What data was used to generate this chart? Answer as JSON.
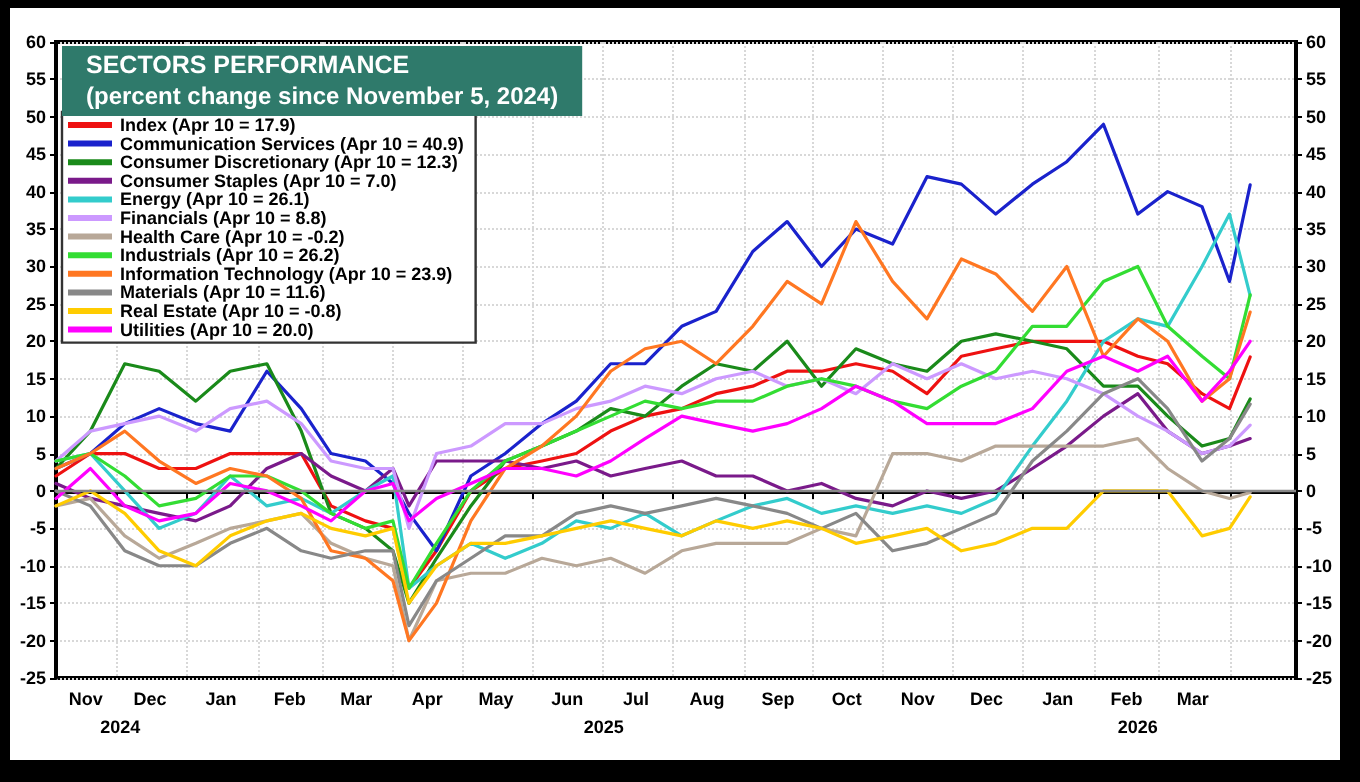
{
  "chart_data": {
    "type": "line",
    "title": "SECTORS PERFORMANCE",
    "subtitle": "(percent change since November 5, 2024)",
    "x": [
      "2024-11-05",
      "2024-11-20",
      "2024-12-05",
      "2024-12-20",
      "2025-01-05",
      "2025-01-20",
      "2025-02-05",
      "2025-02-20",
      "2025-03-05",
      "2025-03-20",
      "2025-04-01",
      "2025-04-08",
      "2025-04-20",
      "2025-05-05",
      "2025-05-20",
      "2025-06-05",
      "2025-06-20",
      "2025-07-05",
      "2025-07-20",
      "2025-08-05",
      "2025-08-20",
      "2025-09-05",
      "2025-09-20",
      "2025-10-05",
      "2025-10-20",
      "2025-11-05",
      "2025-11-20",
      "2025-12-05",
      "2025-12-20",
      "2026-01-05",
      "2026-01-20",
      "2026-02-05",
      "2026-02-20",
      "2026-03-05",
      "2026-03-20",
      "2026-04-01",
      "2026-04-10"
    ],
    "series": [
      {
        "name": "Index (Apr 10 = 17.9)",
        "color": "#ee1111",
        "values": [
          2,
          5,
          5,
          3,
          3,
          5,
          5,
          5,
          -2,
          -4,
          -5,
          -13,
          -8,
          0,
          3,
          4,
          5,
          8,
          10,
          11,
          13,
          14,
          16,
          16,
          17,
          16,
          13,
          18,
          19,
          20,
          20,
          20,
          18,
          17,
          13,
          11,
          17.9
        ]
      },
      {
        "name": "Communication Services (Apr 10 = 40.9)",
        "color": "#1a22cc",
        "values": [
          3,
          5,
          9,
          11,
          9,
          8,
          16,
          11,
          5,
          4,
          1,
          -3,
          -8,
          2,
          5,
          9,
          12,
          17,
          17,
          22,
          24,
          32,
          36,
          30,
          35,
          33,
          42,
          41,
          37,
          41,
          44,
          49,
          37,
          40,
          38,
          28,
          40.9
        ]
      },
      {
        "name": "Consumer Discretionary (Apr 10 = 12.3)",
        "color": "#1a8a1a",
        "values": [
          3,
          8,
          17,
          16,
          12,
          16,
          17,
          8,
          -3,
          -5,
          -8,
          -15,
          -9,
          -2,
          4,
          6,
          8,
          11,
          10,
          14,
          17,
          16,
          20,
          14,
          19,
          17,
          16,
          20,
          21,
          20,
          19,
          14,
          14,
          10,
          6,
          7,
          12.3
        ]
      },
      {
        "name": "Consumer Staples (Apr 10 = 7.0)",
        "color": "#7a1a8a",
        "values": [
          1,
          -1,
          -2,
          -3,
          -4,
          -2,
          3,
          5,
          2,
          0,
          3,
          -2,
          4,
          4,
          4,
          3,
          4,
          2,
          3,
          4,
          2,
          2,
          0,
          1,
          -1,
          -2,
          0,
          -1,
          0,
          3,
          6,
          10,
          13,
          8,
          5,
          6,
          7.0
        ]
      },
      {
        "name": "Energy (Apr 10 = 26.1)",
        "color": "#33cccc",
        "values": [
          4,
          5,
          0,
          -5,
          -3,
          2,
          -2,
          -1,
          -3,
          0,
          2,
          -13,
          -10,
          -7,
          -9,
          -7,
          -4,
          -5,
          -3,
          -6,
          -4,
          -2,
          -1,
          -3,
          -2,
          -3,
          -2,
          -3,
          -1,
          6,
          12,
          20,
          23,
          22,
          30,
          37,
          26.1
        ]
      },
      {
        "name": "Financials (Apr 10 = 8.8)",
        "color": "#cc99ff",
        "values": [
          4,
          8,
          9,
          10,
          8,
          11,
          12,
          9,
          4,
          3,
          3,
          -5,
          5,
          6,
          9,
          9,
          11,
          12,
          14,
          13,
          15,
          16,
          14,
          15,
          13,
          17,
          15,
          17,
          15,
          16,
          15,
          13,
          10,
          8,
          5,
          6,
          8.8
        ]
      },
      {
        "name": "Health Care (Apr 10 = -0.2)",
        "color": "#b8a898",
        "values": [
          -2,
          -1,
          -6,
          -9,
          -7,
          -5,
          -4,
          -3,
          -7,
          -9,
          -10,
          -20,
          -12,
          -11,
          -11,
          -9,
          -10,
          -9,
          -11,
          -8,
          -7,
          -7,
          -7,
          -5,
          -6,
          5,
          5,
          4,
          6,
          6,
          6,
          6,
          7,
          3,
          0,
          -1,
          -0.2
        ]
      },
      {
        "name": "Industrials (Apr 10 = 26.2)",
        "color": "#33dd33",
        "values": [
          4,
          5,
          2,
          -2,
          -1,
          2,
          2,
          0,
          -3,
          -5,
          -4,
          -13,
          -7,
          0,
          4,
          6,
          8,
          10,
          12,
          11,
          12,
          12,
          14,
          15,
          14,
          12,
          11,
          14,
          16,
          22,
          22,
          28,
          30,
          22,
          18,
          15,
          26.2
        ]
      },
      {
        "name": "Information Technology (Apr 10 = 23.9)",
        "color": "#ff7722",
        "values": [
          3,
          5,
          8,
          4,
          1,
          3,
          2,
          -1,
          -8,
          -9,
          -12,
          -20,
          -15,
          -4,
          3,
          6,
          10,
          16,
          19,
          20,
          17,
          22,
          28,
          25,
          36,
          28,
          23,
          31,
          29,
          24,
          30,
          18,
          23,
          20,
          12,
          15,
          23.9
        ]
      },
      {
        "name": "Materials (Apr 10 = 11.6)",
        "color": "#888888",
        "values": [
          0,
          -2,
          -8,
          -10,
          -10,
          -7,
          -5,
          -8,
          -9,
          -8,
          -8,
          -18,
          -12,
          -9,
          -6,
          -6,
          -3,
          -2,
          -3,
          -2,
          -1,
          -2,
          -3,
          -5,
          -3,
          -8,
          -7,
          -5,
          -3,
          4,
          8,
          13,
          15,
          11,
          4,
          7,
          11.6
        ]
      },
      {
        "name": "Real Estate (Apr 10 = -0.8)",
        "color": "#ffcc00",
        "values": [
          -2,
          0,
          -3,
          -8,
          -10,
          -6,
          -4,
          -3,
          -5,
          -6,
          -5,
          -15,
          -10,
          -7,
          -7,
          -6,
          -5,
          -4,
          -5,
          -6,
          -4,
          -5,
          -4,
          -5,
          -7,
          -6,
          -5,
          -8,
          -7,
          -5,
          -5,
          0,
          0,
          0,
          -6,
          -5,
          -0.8
        ]
      },
      {
        "name": "Utilities (Apr 10 = 20.0)",
        "color": "#ff00ff",
        "values": [
          -1,
          3,
          -2,
          -4,
          -3,
          1,
          0,
          -2,
          -4,
          0,
          1,
          -4,
          -1,
          1,
          3,
          3,
          2,
          4,
          7,
          10,
          9,
          8,
          9,
          11,
          14,
          12,
          9,
          9,
          9,
          11,
          16,
          18,
          16,
          18,
          12,
          16,
          20.0
        ]
      }
    ],
    "xlim": [
      "2024-11-05",
      "2026-04-30"
    ],
    "xticks": [
      {
        "value": "2024-12-01",
        "label": null
      },
      {
        "value": "2025-01-01",
        "label": null
      },
      {
        "value": "2025-02-01",
        "label": null
      },
      {
        "value": "2025-03-01",
        "label": null
      },
      {
        "value": "2025-04-01",
        "label": null
      },
      {
        "value": "2025-05-01",
        "label": null
      },
      {
        "value": "2025-06-01",
        "label": null
      },
      {
        "value": "2025-07-01",
        "label": null
      },
      {
        "value": "2025-08-01",
        "label": null
      },
      {
        "value": "2025-09-01",
        "label": null
      },
      {
        "value": "2025-10-01",
        "label": null
      },
      {
        "value": "2025-11-01",
        "label": null
      },
      {
        "value": "2025-12-01",
        "label": null
      },
      {
        "value": "2026-01-01",
        "label": null
      },
      {
        "value": "2026-02-01",
        "label": null
      },
      {
        "value": "2026-03-01",
        "label": null
      },
      {
        "value": "2026-04-01",
        "label": null
      },
      {
        "value": "2024-11-18",
        "label": "Nov"
      },
      {
        "value": "2024-12-16",
        "label": "Dec"
      },
      {
        "value": "2025-01-16",
        "label": "Jan"
      },
      {
        "value": "2025-02-15",
        "label": "Feb"
      },
      {
        "value": "2025-03-16",
        "label": "Mar"
      },
      {
        "value": "2025-04-16",
        "label": "Apr"
      },
      {
        "value": "2025-05-16",
        "label": "May"
      },
      {
        "value": "2025-06-16",
        "label": "Jun"
      },
      {
        "value": "2025-07-16",
        "label": "Jul"
      },
      {
        "value": "2025-08-16",
        "label": "Aug"
      },
      {
        "value": "2025-09-16",
        "label": "Sep"
      },
      {
        "value": "2025-10-16",
        "label": "Oct"
      },
      {
        "value": "2025-11-16",
        "label": "Nov"
      },
      {
        "value": "2025-12-16",
        "label": "Dec"
      },
      {
        "value": "2026-01-16",
        "label": "Jan"
      },
      {
        "value": "2026-02-15",
        "label": "Feb"
      },
      {
        "value": "2026-03-16",
        "label": "Mar"
      }
    ],
    "x2lim": [
      "2024-11-05",
      "2026-04-30"
    ],
    "x2ticks": [
      {
        "value": "2024-12-03",
        "label": "2024"
      },
      {
        "value": "2025-07-02",
        "label": "2025"
      },
      {
        "value": "2026-02-20",
        "label": "2026"
      }
    ],
    "ylim": [
      -25,
      60
    ],
    "yticks": [
      -25,
      -20,
      -15,
      -10,
      -5,
      0,
      5,
      10,
      15,
      20,
      25,
      30,
      35,
      40,
      45,
      50,
      55,
      60
    ],
    "y2lim": [
      -25,
      60
    ],
    "y2ticks": [
      -25,
      -20,
      -15,
      -10,
      -5,
      0,
      5,
      10,
      15,
      20,
      25,
      30,
      35,
      40,
      45,
      50,
      55,
      60
    ],
    "ref_lines": [
      {
        "axis": "y",
        "value": 0,
        "color": "#888888"
      }
    ],
    "grid": true,
    "legend": "top left",
    "marker": "none",
    "line_style": "solid"
  }
}
